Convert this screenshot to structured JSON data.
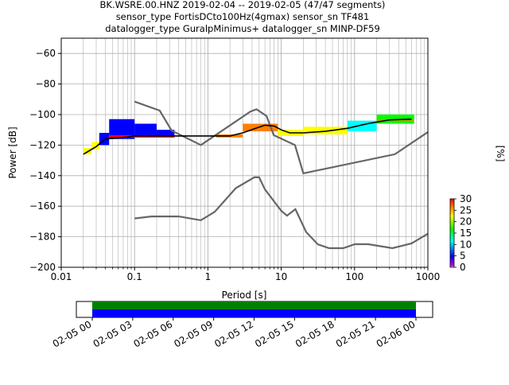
{
  "figure": {
    "title_line1": "BK.WSRE.00.HNZ   2019-02-04 -- 2019-02-05  (47/47 segments)",
    "title_line2": "sensor_type FortisDCto100Hz(4gmax) sensor_sn TF481",
    "title_line3": "datalogger_type GuralpMinimus+ datalogger_sn MINP-DF59"
  },
  "chart_data": [
    {
      "type": "heatmap",
      "title": "BK.WSRE.00.HNZ   2019-02-04 -- 2019-02-05  (47/47 segments)",
      "xlabel": "Period [s]",
      "ylabel": "Power [dB]",
      "xscale": "log",
      "xlim": [
        0.01,
        1000
      ],
      "ylim": [
        -200,
        -50
      ],
      "grid": true,
      "xticks": [
        {
          "value": 0.01,
          "label": "0.01"
        },
        {
          "value": 0.1,
          "label": "0.1"
        },
        {
          "value": 1,
          "label": "1"
        },
        {
          "value": 10,
          "label": "10"
        },
        {
          "value": 100,
          "label": "100"
        },
        {
          "value": 1000,
          "label": "1000"
        }
      ],
      "yticks": [
        {
          "value": -60,
          "label": "−60"
        },
        {
          "value": -80,
          "label": "−80"
        },
        {
          "value": -100,
          "label": "−100"
        },
        {
          "value": -120,
          "label": "−120"
        },
        {
          "value": -140,
          "label": "−140"
        },
        {
          "value": -160,
          "label": "−160"
        },
        {
          "value": -180,
          "label": "−180"
        },
        {
          "value": -200,
          "label": "−200"
        }
      ],
      "colorbar": {
        "label": "[%]",
        "range": [
          0,
          30
        ],
        "ticks": [
          {
            "value": 0,
            "label": "0"
          },
          {
            "value": 5,
            "label": "5"
          },
          {
            "value": 10,
            "label": "10"
          },
          {
            "value": 15,
            "label": "15"
          },
          {
            "value": 20,
            "label": "20"
          },
          {
            "value": 25,
            "label": "25"
          },
          {
            "value": 30,
            "label": "30"
          }
        ],
        "colors": [
          "#ffffff",
          "#cc00ff",
          "#0000ff",
          "#00ffff",
          "#00ff00",
          "#ffff00",
          "#ff8000",
          "#ff0000"
        ]
      },
      "noise_models": [
        {
          "points": [
            [
              0.1,
              -91.5
            ],
            [
              0.22,
              -97.4
            ],
            [
              0.32,
              -110.5
            ],
            [
              0.8,
              -120
            ],
            [
              3.8,
              -98
            ],
            [
              4.6,
              -96.5
            ],
            [
              6.3,
              -101
            ],
            [
              7.9,
              -113.5
            ],
            [
              15.4,
              -120
            ],
            [
              20,
              -138.5
            ],
            [
              354.8,
              -126
            ],
            [
              1000,
              -111.5
            ]
          ]
        },
        {
          "points": [
            [
              0.1,
              -168
            ],
            [
              0.17,
              -166.7
            ],
            [
              0.4,
              -166.7
            ],
            [
              0.8,
              -169.2
            ],
            [
              1.24,
              -163.7
            ],
            [
              2.4,
              -148.2
            ],
            [
              4.3,
              -141.1
            ],
            [
              5,
              -141.1
            ],
            [
              6,
              -149
            ],
            [
              10,
              -163
            ],
            [
              12,
              -166.2
            ],
            [
              15.6,
              -162
            ],
            [
              21.9,
              -177
            ],
            [
              31.6,
              -185
            ],
            [
              45,
              -187.5
            ],
            [
              70,
              -187.5
            ],
            [
              101,
              -184.9
            ],
            [
              154,
              -184.9
            ],
            [
              328,
              -187.5
            ],
            [
              600,
              -184.4
            ],
            [
              1000,
              -178
            ]
          ]
        }
      ],
      "median": {
        "points": [
          [
            0.02,
            -126
          ],
          [
            0.03,
            -121
          ],
          [
            0.04,
            -116
          ],
          [
            0.07,
            -115
          ],
          [
            0.1,
            -114
          ],
          [
            0.3,
            -114
          ],
          [
            1,
            -114
          ],
          [
            2,
            -114
          ],
          [
            3,
            -112
          ],
          [
            4.5,
            -109
          ],
          [
            6,
            -107
          ],
          [
            8,
            -107.5
          ],
          [
            10,
            -110
          ],
          [
            13,
            -112
          ],
          [
            20,
            -112
          ],
          [
            40,
            -111
          ],
          [
            80,
            -109
          ],
          [
            150,
            -106
          ],
          [
            300,
            -103.5
          ],
          [
            600,
            -103
          ]
        ]
      },
      "histogram_bands": [
        {
          "x0": 0.02,
          "x1": 0.026,
          "y0": -126,
          "y1": -122,
          "level": 22
        },
        {
          "x0": 0.026,
          "x1": 0.033,
          "y0": -123,
          "y1": -118,
          "level": 20
        },
        {
          "x0": 0.033,
          "x1": 0.045,
          "y0": -120,
          "y1": -112,
          "level": 3
        },
        {
          "x0": 0.045,
          "x1": 0.1,
          "y0": -116,
          "y1": -103,
          "level": 1
        },
        {
          "x0": 0.1,
          "x1": 0.2,
          "y0": -115,
          "y1": -106,
          "level": 1
        },
        {
          "x0": 0.2,
          "x1": 0.35,
          "y0": -115,
          "y1": -110,
          "level": 2
        },
        {
          "x0": 0.045,
          "x1": 0.35,
          "y0": -115,
          "y1": -113.5,
          "level": 27
        },
        {
          "x0": 1.3,
          "x1": 3,
          "y0": -115,
          "y1": -113,
          "level": 24
        },
        {
          "x0": 3,
          "x1": 9,
          "y0": -111,
          "y1": -106,
          "level": 25
        },
        {
          "x0": 9,
          "x1": 20,
          "y0": -114,
          "y1": -110,
          "level": 22
        },
        {
          "x0": 20,
          "x1": 80,
          "y0": -113,
          "y1": -108,
          "level": 20
        },
        {
          "x0": 80,
          "x1": 200,
          "y0": -111,
          "y1": -104,
          "level": 10
        },
        {
          "x0": 200,
          "x1": 650,
          "y0": -106,
          "y1": -100,
          "level": 12
        },
        {
          "x0": 200,
          "x1": 650,
          "y0": -104,
          "y1": -103,
          "level": 23
        }
      ]
    },
    {
      "type": "bar",
      "xlim": [
        "02-05 00",
        "02-06 00"
      ],
      "xticks": [
        {
          "label": "02-05 00",
          "hours": 0
        },
        {
          "label": "02-05 03",
          "hours": 3
        },
        {
          "label": "02-05 06",
          "hours": 6
        },
        {
          "label": "02-05 09",
          "hours": 9
        },
        {
          "label": "02-05 12",
          "hours": 12
        },
        {
          "label": "02-05 15",
          "hours": 15
        },
        {
          "label": "02-05 18",
          "hours": 18
        },
        {
          "label": "02-05 21",
          "hours": 21
        },
        {
          "label": "02-06 00",
          "hours": 24
        }
      ],
      "coverage": [
        {
          "start_hours": 0,
          "end_hours": 24,
          "color": "#008000"
        },
        {
          "start_hours": 0,
          "end_hours": 24,
          "color": "#0000ff"
        }
      ]
    }
  ]
}
